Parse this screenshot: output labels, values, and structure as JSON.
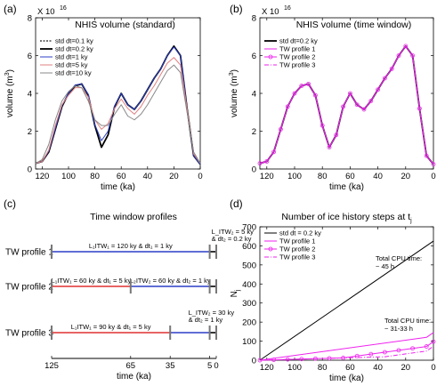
{
  "chart_data": [
    {
      "panel": "(a)",
      "type": "line",
      "title": "NHIS volume (standard)",
      "xlabel": "time (ka)",
      "ylabel_main": "volume (m",
      "ylabel_sup": "3",
      "ylabel_end": ")",
      "multiplier_base": "X 10",
      "multiplier_exp": "16",
      "xlim": [
        125,
        0
      ],
      "ylim": [
        0,
        8
      ],
      "xticks": [
        120,
        100,
        80,
        60,
        40,
        20,
        0
      ],
      "yticks": [
        0,
        2,
        4,
        6,
        8
      ],
      "x": [
        125,
        120,
        115,
        110,
        105,
        100,
        95,
        90,
        85,
        80,
        75,
        70,
        65,
        60,
        55,
        50,
        45,
        40,
        35,
        30,
        25,
        20,
        15,
        10,
        5,
        0
      ],
      "series": [
        {
          "name": "std dt=0.1 ky",
          "color": "#222222",
          "dash": "2,1.5",
          "width": 1.2,
          "values": [
            0.3,
            0.4,
            0.9,
            2.1,
            3.3,
            4.0,
            4.4,
            4.5,
            3.9,
            2.3,
            1.15,
            1.8,
            3.3,
            4.0,
            3.4,
            3.15,
            3.6,
            4.2,
            4.8,
            5.3,
            6.0,
            6.5,
            6.0,
            3.2,
            0.7,
            0.25
          ]
        },
        {
          "name": "std dt=0.2 ky",
          "color": "#000000",
          "dash": "",
          "width": 1.8,
          "values": [
            0.3,
            0.4,
            0.9,
            2.1,
            3.3,
            4.0,
            4.4,
            4.5,
            3.9,
            2.3,
            1.15,
            1.8,
            3.3,
            4.0,
            3.4,
            3.15,
            3.6,
            4.2,
            4.8,
            5.3,
            6.0,
            6.5,
            6.0,
            3.2,
            0.7,
            0.25
          ]
        },
        {
          "name": "std dt=1 ky",
          "color": "#2b3fc7",
          "dash": "",
          "width": 1.0,
          "values": [
            0.3,
            0.4,
            0.95,
            2.15,
            3.35,
            4.0,
            4.45,
            4.5,
            3.95,
            2.35,
            1.5,
            2.0,
            3.35,
            4.0,
            3.4,
            3.15,
            3.6,
            4.2,
            4.8,
            5.3,
            6.0,
            6.45,
            6.0,
            3.2,
            0.7,
            0.25
          ]
        },
        {
          "name": "std dt=5 ky",
          "color": "#e08080",
          "dash": "",
          "width": 1.0,
          "values": [
            0.3,
            0.4,
            1.0,
            2.3,
            3.4,
            3.9,
            4.3,
            4.3,
            3.8,
            2.6,
            2.1,
            2.4,
            3.2,
            3.7,
            3.2,
            2.9,
            3.3,
            3.9,
            4.4,
            5.0,
            5.6,
            5.9,
            5.5,
            3.2,
            0.8,
            0.3
          ]
        },
        {
          "name": "std dt=10 ky",
          "color": "#888888",
          "dash": "",
          "width": 1.0,
          "values": [
            0.3,
            0.5,
            1.3,
            2.6,
            3.6,
            4.1,
            4.4,
            4.3,
            3.6,
            2.6,
            2.3,
            2.3,
            2.9,
            3.4,
            2.8,
            2.6,
            2.9,
            3.4,
            4.0,
            4.6,
            5.2,
            5.5,
            5.1,
            3.0,
            0.9,
            0.3
          ]
        }
      ]
    },
    {
      "panel": "(b)",
      "type": "line",
      "title": "NHIS volume (time window)",
      "xlabel": "time (ka)",
      "ylabel_main": "volume (m",
      "ylabel_sup": "3",
      "ylabel_end": ")",
      "multiplier_base": "X 10",
      "multiplier_exp": "16",
      "xlim": [
        125,
        0
      ],
      "ylim": [
        0,
        8
      ],
      "xticks": [
        120,
        100,
        80,
        60,
        40,
        20,
        0
      ],
      "yticks": [
        0,
        2,
        4,
        6,
        8
      ],
      "x": [
        125,
        120,
        115,
        110,
        105,
        100,
        95,
        90,
        85,
        80,
        75,
        70,
        65,
        60,
        55,
        50,
        45,
        40,
        35,
        30,
        25,
        20,
        15,
        10,
        5,
        0
      ],
      "series": [
        {
          "name": "std dt=0.2 ky",
          "color": "#000000",
          "dash": "",
          "width": 1.8,
          "marker": "",
          "values": [
            0.3,
            0.4,
            0.9,
            2.1,
            3.3,
            4.0,
            4.4,
            4.5,
            3.9,
            2.3,
            1.15,
            1.8,
            3.3,
            4.0,
            3.4,
            3.15,
            3.6,
            4.2,
            4.8,
            5.3,
            6.0,
            6.5,
            6.0,
            3.2,
            0.7,
            0.25
          ]
        },
        {
          "name": "TW profile 1",
          "color": "#ee22ee",
          "dash": "",
          "width": 1.0,
          "marker": "",
          "values": [
            0.3,
            0.4,
            0.9,
            2.1,
            3.3,
            4.0,
            4.4,
            4.5,
            3.9,
            2.3,
            1.15,
            1.8,
            3.3,
            4.0,
            3.4,
            3.15,
            3.6,
            4.2,
            4.8,
            5.3,
            6.0,
            6.5,
            6.0,
            3.2,
            0.7,
            0.25
          ]
        },
        {
          "name": "TW profile 2",
          "color": "#ee22ee",
          "dash": "",
          "width": 1.0,
          "marker": "circle",
          "values": [
            0.3,
            0.4,
            0.9,
            2.1,
            3.3,
            4.0,
            4.4,
            4.5,
            3.9,
            2.3,
            1.15,
            1.8,
            3.3,
            4.0,
            3.4,
            3.15,
            3.6,
            4.2,
            4.8,
            5.3,
            6.0,
            6.5,
            6.0,
            3.2,
            0.7,
            0.25
          ]
        },
        {
          "name": "TW profile 3",
          "color": "#ee22ee",
          "dash": "5,2,1,2",
          "width": 1.0,
          "marker": "",
          "values": [
            0.3,
            0.4,
            0.9,
            2.1,
            3.3,
            4.0,
            4.4,
            4.5,
            3.9,
            2.3,
            1.15,
            1.8,
            3.3,
            4.0,
            3.4,
            3.15,
            3.6,
            4.2,
            4.8,
            5.3,
            6.0,
            6.5,
            6.0,
            3.2,
            0.7,
            0.25
          ]
        }
      ]
    },
    {
      "panel": "(c)",
      "type": "diagram",
      "title": "Time window profiles",
      "xlabel": "time (ka)",
      "xticks": [
        125,
        65,
        35,
        5,
        0
      ],
      "profiles": [
        {
          "label": "TW profile 1",
          "segments": [
            {
              "from": 125,
              "to": 5,
              "color": "#2b3fc7",
              "text": "L₁ITW₁ = 120 ky & dt₁ = 1 ky"
            },
            {
              "from": 5,
              "to": 0,
              "color": "#000000",
              "text": ""
            }
          ],
          "boundaries": [
            125,
            5,
            0
          ],
          "note_line1": "L_ITW₂ = 5 ky",
          "note_line2": "& dt₂ = 0.2 ky"
        },
        {
          "label": "TW profile 2",
          "segments": [
            {
              "from": 125,
              "to": 65,
              "color": "#e03030",
              "text": "L₁ITW₁ = 60 ky & dt₁ = 5 ky"
            },
            {
              "from": 65,
              "to": 5,
              "color": "#2b3fc7",
              "text": "L₂ITW₂ = 60 ky & dt₂ = 1 ky"
            },
            {
              "from": 5,
              "to": 0,
              "color": "#000000",
              "text": ""
            }
          ],
          "boundaries": [
            125,
            65,
            5,
            0
          ]
        },
        {
          "label": "TW profile 3",
          "segments": [
            {
              "from": 125,
              "to": 35,
              "color": "#e03030",
              "text": "L₁ITW₁ = 90 ky & dt₁ = 5 ky"
            },
            {
              "from": 35,
              "to": 5,
              "color": "#2b3fc7",
              "text": ""
            },
            {
              "from": 5,
              "to": 0,
              "color": "#000000",
              "text": ""
            }
          ],
          "boundaries": [
            125,
            35,
            5,
            0
          ],
          "note_line1": "L_ITW₂ = 30 ky",
          "note_line2": "& dt₂ = 1 ky"
        }
      ]
    },
    {
      "panel": "(d)",
      "type": "line",
      "title_main": "Number of ice history steps at t",
      "title_sub": "j",
      "xlabel": "time (ka)",
      "ylabel_main": "N",
      "ylabel_sub": "j",
      "xlim": [
        125,
        0
      ],
      "ylim": [
        0,
        700
      ],
      "xticks": [
        120,
        100,
        80,
        60,
        40,
        20,
        0
      ],
      "yticks": [
        0,
        100,
        200,
        300,
        400,
        500,
        600,
        700
      ],
      "series": [
        {
          "name": "std dt = 0.2 ky",
          "color": "#000000",
          "dash": "",
          "marker": "",
          "x": [
            125,
            0
          ],
          "values": [
            0,
            625
          ]
        },
        {
          "name": "TW profile 1",
          "color": "#ee22ee",
          "dash": "",
          "marker": "",
          "x": [
            125,
            5,
            0
          ],
          "values": [
            0,
            120,
            145
          ]
        },
        {
          "name": "TW profile 2",
          "color": "#ee22ee",
          "dash": "",
          "marker": "circle",
          "x": [
            125,
            115,
            105,
            95,
            85,
            75,
            65,
            55,
            45,
            35,
            25,
            15,
            5,
            0
          ],
          "values": [
            0,
            2,
            4,
            6,
            8,
            10,
            12,
            22,
            32,
            42,
            52,
            62,
            72,
            97
          ]
        },
        {
          "name": "TW profile 3",
          "color": "#ee22ee",
          "dash": "5,2,1,2",
          "marker": "",
          "x": [
            125,
            35,
            5,
            0
          ],
          "values": [
            0,
            18,
            48,
            73
          ]
        }
      ],
      "annotations": [
        {
          "line1": "Total CPU time:",
          "line2": "~ 45 h",
          "color": "#000000"
        },
        {
          "line1": "Total CPU time:",
          "line2": "~ 31-33 h",
          "color": "#ee22ee"
        }
      ]
    }
  ]
}
